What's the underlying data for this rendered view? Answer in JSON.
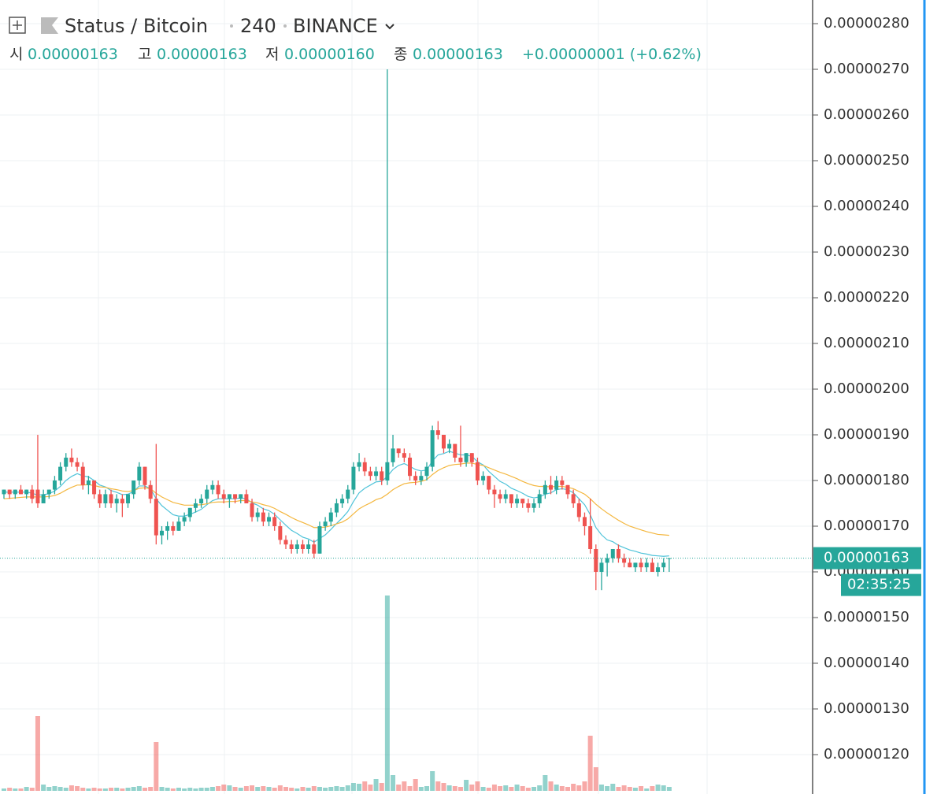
{
  "header": {
    "symbol": "Status / Bitcoin",
    "interval": "240",
    "exchange": "BINANCE",
    "ohlc": [
      {
        "label": "시",
        "value": "0.00000163"
      },
      {
        "label": "고",
        "value": "0.00000163"
      },
      {
        "label": "저",
        "value": "0.00000160"
      },
      {
        "label": "종",
        "value": "0.00000163"
      }
    ],
    "change": "+0.00000001 (+0.62%)"
  },
  "chart_data": {
    "type": "candlestick",
    "up_color": "#26a69a",
    "down_color": "#ef5350",
    "grid": true,
    "ylim": [
      1.1138e-06,
      2.8517e-06
    ],
    "yticks": [
      {
        "value": 2.8e-06,
        "label": "0.00000280"
      },
      {
        "value": 2.7e-06,
        "label": "0.00000270"
      },
      {
        "value": 2.6e-06,
        "label": "0.00000260"
      },
      {
        "value": 2.5e-06,
        "label": "0.00000250"
      },
      {
        "value": 2.4e-06,
        "label": "0.00000240"
      },
      {
        "value": 2.3e-06,
        "label": "0.00000230"
      },
      {
        "value": 2.2e-06,
        "label": "0.00000220"
      },
      {
        "value": 2.1e-06,
        "label": "0.00000210"
      },
      {
        "value": 2e-06,
        "label": "0.00000200"
      },
      {
        "value": 1.9e-06,
        "label": "0.00000190"
      },
      {
        "value": 1.8e-06,
        "label": "0.00000180"
      },
      {
        "value": 1.7e-06,
        "label": "0.00000170"
      },
      {
        "value": 1.6e-06,
        "label": "0.00000160"
      },
      {
        "value": 1.5e-06,
        "label": "0.00000150"
      },
      {
        "value": 1.4e-06,
        "label": "0.00000140"
      },
      {
        "value": 1.3e-06,
        "label": "0.00000130"
      },
      {
        "value": 1.2e-06,
        "label": "0.00000120"
      }
    ],
    "open": [
      1.77e-06,
      1.78e-06,
      1.77e-06,
      1.78e-06,
      1.77e-06,
      1.78e-06,
      1.78e-06,
      1.75e-06,
      1.77e-06,
      1.78e-06,
      1.8e-06,
      1.83e-06,
      1.85e-06,
      1.84e-06,
      1.83e-06,
      1.79e-06,
      1.8e-06,
      1.77e-06,
      1.75e-06,
      1.77e-06,
      1.75e-06,
      1.76e-06,
      1.75e-06,
      1.77e-06,
      1.8e-06,
      1.83e-06,
      1.79e-06,
      1.76e-06,
      1.68e-06,
      1.69e-06,
      1.7e-06,
      1.69e-06,
      1.71e-06,
      1.72e-06,
      1.74e-06,
      1.75e-06,
      1.76e-06,
      1.78e-06,
      1.79e-06,
      1.77e-06,
      1.76e-06,
      1.77e-06,
      1.76e-06,
      1.77e-06,
      1.75e-06,
      1.72e-06,
      1.73e-06,
      1.71e-06,
      1.72e-06,
      1.7e-06,
      1.67e-06,
      1.66e-06,
      1.65e-06,
      1.66e-06,
      1.65e-06,
      1.66e-06,
      1.64e-06,
      1.7e-06,
      1.71e-06,
      1.73e-06,
      1.75e-06,
      1.76e-06,
      1.78e-06,
      1.83e-06,
      1.84e-06,
      1.82e-06,
      1.81e-06,
      1.82e-06,
      1.8e-06,
      1.84e-06,
      1.87e-06,
      1.86e-06,
      1.85e-06,
      1.81e-06,
      1.8e-06,
      1.81e-06,
      1.83e-06,
      1.91e-06,
      1.9e-06,
      1.87e-06,
      1.88e-06,
      1.85e-06,
      1.84e-06,
      1.86e-06,
      1.84e-06,
      1.8e-06,
      1.81e-06,
      1.78e-06,
      1.77e-06,
      1.76e-06,
      1.77e-06,
      1.75e-06,
      1.76e-06,
      1.75e-06,
      1.74e-06,
      1.75e-06,
      1.77e-06,
      1.79e-06,
      1.78e-06,
      1.8e-06,
      1.79e-06,
      1.77e-06,
      1.75e-06,
      1.72e-06,
      1.7e-06,
      1.65e-06,
      1.6e-06,
      1.62e-06,
      1.63e-06,
      1.65e-06,
      1.63e-06,
      1.62e-06,
      1.61e-06,
      1.62e-06,
      1.61e-06,
      1.62e-06,
      1.6e-06,
      1.61e-06,
      1.63e-06
    ],
    "high": [
      1.78e-06,
      1.78e-06,
      1.78e-06,
      1.79e-06,
      1.78e-06,
      1.79e-06,
      1.9e-06,
      1.78e-06,
      1.78e-06,
      1.81e-06,
      1.84e-06,
      1.86e-06,
      1.87e-06,
      1.85e-06,
      1.84e-06,
      1.81e-06,
      1.8e-06,
      1.78e-06,
      1.78e-06,
      1.78e-06,
      1.77e-06,
      1.77e-06,
      1.77e-06,
      1.8e-06,
      1.84e-06,
      1.83e-06,
      1.8e-06,
      1.88e-06,
      1.7e-06,
      1.71e-06,
      1.71e-06,
      1.72e-06,
      1.73e-06,
      1.74e-06,
      1.76e-06,
      1.77e-06,
      1.79e-06,
      1.8e-06,
      1.8e-06,
      1.78e-06,
      1.77e-06,
      1.77e-06,
      1.77e-06,
      1.78e-06,
      1.76e-06,
      1.74e-06,
      1.74e-06,
      1.73e-06,
      1.73e-06,
      1.71e-06,
      1.68e-06,
      1.67e-06,
      1.67e-06,
      1.67e-06,
      1.67e-06,
      1.67e-06,
      1.71e-06,
      1.72e-06,
      1.74e-06,
      1.76e-06,
      1.77e-06,
      1.79e-06,
      1.84e-06,
      1.86e-06,
      1.85e-06,
      1.83e-06,
      1.83e-06,
      1.83e-06,
      2.7e-06,
      1.9e-06,
      1.87e-06,
      1.87e-06,
      1.86e-06,
      1.82e-06,
      1.82e-06,
      1.84e-06,
      1.92e-06,
      1.93e-06,
      1.9e-06,
      1.89e-06,
      1.88e-06,
      1.92e-06,
      1.86e-06,
      1.86e-06,
      1.85e-06,
      1.82e-06,
      1.81e-06,
      1.79e-06,
      1.78e-06,
      1.78e-06,
      1.77e-06,
      1.77e-06,
      1.76e-06,
      1.76e-06,
      1.76e-06,
      1.78e-06,
      1.8e-06,
      1.81e-06,
      1.81e-06,
      1.81e-06,
      1.79e-06,
      1.78e-06,
      1.76e-06,
      1.73e-06,
      1.76e-06,
      1.66e-06,
      1.63e-06,
      1.64e-06,
      1.65e-06,
      1.66e-06,
      1.64e-06,
      1.63e-06,
      1.62e-06,
      1.63e-06,
      1.63e-06,
      1.63e-06,
      1.62e-06,
      1.63e-06,
      1.63e-06
    ],
    "low": [
      1.76e-06,
      1.76e-06,
      1.76e-06,
      1.77e-06,
      1.76e-06,
      1.75e-06,
      1.74e-06,
      1.75e-06,
      1.76e-06,
      1.77e-06,
      1.79e-06,
      1.82e-06,
      1.83e-06,
      1.82e-06,
      1.78e-06,
      1.77e-06,
      1.76e-06,
      1.74e-06,
      1.74e-06,
      1.74e-06,
      1.73e-06,
      1.72e-06,
      1.74e-06,
      1.76e-06,
      1.79e-06,
      1.78e-06,
      1.75e-06,
      1.66e-06,
      1.66e-06,
      1.67e-06,
      1.68e-06,
      1.69e-06,
      1.7e-06,
      1.71e-06,
      1.73e-06,
      1.74e-06,
      1.75e-06,
      1.77e-06,
      1.76e-06,
      1.75e-06,
      1.74e-06,
      1.75e-06,
      1.75e-06,
      1.75e-06,
      1.71e-06,
      1.71e-06,
      1.7e-06,
      1.7e-06,
      1.69e-06,
      1.66e-06,
      1.65e-06,
      1.64e-06,
      1.64e-06,
      1.64e-06,
      1.64e-06,
      1.63e-06,
      1.64e-06,
      1.69e-06,
      1.7e-06,
      1.72e-06,
      1.74e-06,
      1.75e-06,
      1.77e-06,
      1.82e-06,
      1.81e-06,
      1.8e-06,
      1.8e-06,
      1.79e-06,
      1.79e-06,
      1.83e-06,
      1.85e-06,
      1.84e-06,
      1.8e-06,
      1.79e-06,
      1.79e-06,
      1.8e-06,
      1.82e-06,
      1.89e-06,
      1.86e-06,
      1.86e-06,
      1.84e-06,
      1.83e-06,
      1.83e-06,
      1.83e-06,
      1.79e-06,
      1.79e-06,
      1.77e-06,
      1.74e-06,
      1.75e-06,
      1.75e-06,
      1.74e-06,
      1.74e-06,
      1.74e-06,
      1.73e-06,
      1.73e-06,
      1.74e-06,
      1.76e-06,
      1.77e-06,
      1.77e-06,
      1.78e-06,
      1.76e-06,
      1.74e-06,
      1.71e-06,
      1.68e-06,
      1.64e-06,
      1.56e-06,
      1.56e-06,
      1.59e-06,
      1.62e-06,
      1.62e-06,
      1.61e-06,
      1.61e-06,
      1.6e-06,
      1.6e-06,
      1.6e-06,
      1.6e-06,
      1.59e-06,
      1.6e-06,
      1.6e-06
    ],
    "close": [
      1.78e-06,
      1.77e-06,
      1.78e-06,
      1.77e-06,
      1.78e-06,
      1.76e-06,
      1.75e-06,
      1.77e-06,
      1.78e-06,
      1.8e-06,
      1.83e-06,
      1.85e-06,
      1.84e-06,
      1.83e-06,
      1.79e-06,
      1.8e-06,
      1.77e-06,
      1.75e-06,
      1.77e-06,
      1.75e-06,
      1.76e-06,
      1.75e-06,
      1.77e-06,
      1.8e-06,
      1.83e-06,
      1.79e-06,
      1.76e-06,
      1.68e-06,
      1.69e-06,
      1.7e-06,
      1.69e-06,
      1.71e-06,
      1.72e-06,
      1.74e-06,
      1.75e-06,
      1.76e-06,
      1.78e-06,
      1.79e-06,
      1.77e-06,
      1.76e-06,
      1.77e-06,
      1.76e-06,
      1.77e-06,
      1.75e-06,
      1.72e-06,
      1.73e-06,
      1.71e-06,
      1.72e-06,
      1.7e-06,
      1.67e-06,
      1.66e-06,
      1.65e-06,
      1.66e-06,
      1.65e-06,
      1.66e-06,
      1.64e-06,
      1.7e-06,
      1.71e-06,
      1.73e-06,
      1.75e-06,
      1.76e-06,
      1.78e-06,
      1.83e-06,
      1.84e-06,
      1.82e-06,
      1.81e-06,
      1.82e-06,
      1.8e-06,
      1.84e-06,
      1.87e-06,
      1.86e-06,
      1.85e-06,
      1.81e-06,
      1.8e-06,
      1.81e-06,
      1.83e-06,
      1.91e-06,
      1.9e-06,
      1.87e-06,
      1.88e-06,
      1.85e-06,
      1.84e-06,
      1.86e-06,
      1.84e-06,
      1.8e-06,
      1.81e-06,
      1.78e-06,
      1.77e-06,
      1.76e-06,
      1.77e-06,
      1.75e-06,
      1.76e-06,
      1.75e-06,
      1.74e-06,
      1.75e-06,
      1.77e-06,
      1.79e-06,
      1.78e-06,
      1.8e-06,
      1.79e-06,
      1.77e-06,
      1.75e-06,
      1.72e-06,
      1.7e-06,
      1.65e-06,
      1.6e-06,
      1.62e-06,
      1.63e-06,
      1.65e-06,
      1.63e-06,
      1.62e-06,
      1.61e-06,
      1.62e-06,
      1.61e-06,
      1.62e-06,
      1.6e-06,
      1.61e-06,
      1.62e-06,
      1.63e-06
    ],
    "volume": [
      3,
      4,
      3,
      3,
      5,
      4,
      95,
      8,
      5,
      6,
      5,
      4,
      7,
      6,
      4,
      3,
      4,
      3,
      3,
      4,
      4,
      3,
      4,
      5,
      6,
      4,
      5,
      62,
      5,
      4,
      3,
      4,
      3,
      4,
      3,
      4,
      4,
      5,
      6,
      8,
      7,
      5,
      4,
      6,
      7,
      5,
      6,
      5,
      4,
      7,
      5,
      4,
      3,
      5,
      4,
      6,
      5,
      4,
      5,
      6,
      5,
      7,
      10,
      9,
      12,
      8,
      15,
      10,
      248,
      20,
      8,
      12,
      6,
      15,
      5,
      6,
      25,
      12,
      10,
      7,
      6,
      5,
      14,
      8,
      12,
      5,
      4,
      8,
      6,
      7,
      5,
      8,
      6,
      4,
      5,
      7,
      20,
      12,
      8,
      6,
      5,
      9,
      7,
      12,
      70,
      30,
      8,
      6,
      9,
      5,
      7,
      5,
      4,
      6,
      3,
      6,
      8,
      7,
      5
    ],
    "volume_ylim": [
      0,
      300
    ],
    "moving_averages": [
      {
        "color": "#4fc3d9",
        "values": [
          1.775e-06,
          1.774e-06,
          1.775e-06,
          1.774e-06,
          1.775e-06,
          1.772e-06,
          1.768e-06,
          1.769e-06,
          1.771e-06,
          1.777e-06,
          1.787e-06,
          1.8e-06,
          1.809e-06,
          1.815e-06,
          1.81e-06,
          1.808e-06,
          1.8e-06,
          1.79e-06,
          1.786e-06,
          1.778e-06,
          1.774e-06,
          1.769e-06,
          1.77e-06,
          1.776e-06,
          1.788e-06,
          1.788e-06,
          1.782e-06,
          1.76e-06,
          1.745e-06,
          1.735e-06,
          1.725e-06,
          1.722e-06,
          1.722e-06,
          1.726e-06,
          1.731e-06,
          1.737e-06,
          1.747e-06,
          1.756e-06,
          1.76e-06,
          1.76e-06,
          1.76e-06,
          1.76e-06,
          1.762e-06,
          1.76e-06,
          1.751e-06,
          1.746e-06,
          1.738e-06,
          1.734e-06,
          1.726e-06,
          1.714e-06,
          1.702e-06,
          1.691e-06,
          1.684e-06,
          1.676e-06,
          1.672e-06,
          1.665e-06,
          1.673e-06,
          1.681e-06,
          1.693e-06,
          1.706e-06,
          1.718e-06,
          1.732e-06,
          1.754e-06,
          1.773e-06,
          1.783e-06,
          1.79e-06,
          1.797e-06,
          1.798e-06,
          1.809e-06,
          1.824e-06,
          1.833e-06,
          1.837e-06,
          1.831e-06,
          1.824e-06,
          1.821e-06,
          1.823e-06,
          1.843e-06,
          1.856e-06,
          1.859e-06,
          1.864e-06,
          1.86e-06,
          1.856e-06,
          1.856e-06,
          1.853e-06,
          1.841e-06,
          1.834e-06,
          1.82e-06,
          1.809e-06,
          1.798e-06,
          1.792e-06,
          1.783e-06,
          1.778e-06,
          1.772e-06,
          1.765e-06,
          1.762e-06,
          1.764e-06,
          1.77e-06,
          1.773e-06,
          1.78e-06,
          1.782e-06,
          1.78e-06,
          1.773e-06,
          1.76e-06,
          1.747e-06,
          1.725e-06,
          1.697e-06,
          1.681e-06,
          1.67e-06,
          1.666e-06,
          1.658e-06,
          1.653e-06,
          1.648e-06,
          1.645e-06,
          1.641e-06,
          1.639e-06,
          1.636e-06,
          1.635e-06,
          1.634e-06,
          1.635e-06
        ]
      },
      {
        "color": "#f4b73f",
        "values": [
          1.76e-06,
          1.761e-06,
          1.762e-06,
          1.763e-06,
          1.764e-06,
          1.764e-06,
          1.764e-06,
          1.764e-06,
          1.765e-06,
          1.767e-06,
          1.772e-06,
          1.779e-06,
          1.785e-06,
          1.79e-06,
          1.79e-06,
          1.791e-06,
          1.789e-06,
          1.786e-06,
          1.785e-06,
          1.782e-06,
          1.78e-06,
          1.777e-06,
          1.776e-06,
          1.778e-06,
          1.783e-06,
          1.784e-06,
          1.782e-06,
          1.772e-06,
          1.764e-06,
          1.758e-06,
          1.752e-06,
          1.749e-06,
          1.746e-06,
          1.746e-06,
          1.746e-06,
          1.747e-06,
          1.749e-06,
          1.752e-06,
          1.753e-06,
          1.753e-06,
          1.754e-06,
          1.754e-06,
          1.756e-06,
          1.756e-06,
          1.753e-06,
          1.751e-06,
          1.747e-06,
          1.744e-06,
          1.739e-06,
          1.732e-06,
          1.726e-06,
          1.719e-06,
          1.713e-06,
          1.708e-06,
          1.703e-06,
          1.697e-06,
          1.697e-06,
          1.698e-06,
          1.701e-06,
          1.705e-06,
          1.709e-06,
          1.716e-06,
          1.727e-06,
          1.738e-06,
          1.745e-06,
          1.751e-06,
          1.758e-06,
          1.762e-06,
          1.77e-06,
          1.78e-06,
          1.787e-06,
          1.793e-06,
          1.795e-06,
          1.796e-06,
          1.798e-06,
          1.802e-06,
          1.813e-06,
          1.822e-06,
          1.828e-06,
          1.833e-06,
          1.835e-06,
          1.836e-06,
          1.838e-06,
          1.838e-06,
          1.835e-06,
          1.833e-06,
          1.828e-06,
          1.823e-06,
          1.818e-06,
          1.814e-06,
          1.809e-06,
          1.804e-06,
          1.798e-06,
          1.793e-06,
          1.789e-06,
          1.787e-06,
          1.787e-06,
          1.786e-06,
          1.787e-06,
          1.787e-06,
          1.785e-06,
          1.782e-06,
          1.776e-06,
          1.77e-06,
          1.76e-06,
          1.748e-06,
          1.738e-06,
          1.729e-06,
          1.721e-06,
          1.713e-06,
          1.706e-06,
          1.7e-06,
          1.696e-06,
          1.692e-06,
          1.688e-06,
          1.685e-06,
          1.682e-06,
          1.681e-06,
          1.68e-06
        ]
      }
    ],
    "last_price": {
      "value": 1.63e-06,
      "label": "0.00000163"
    },
    "countdown": "02:35:25"
  }
}
